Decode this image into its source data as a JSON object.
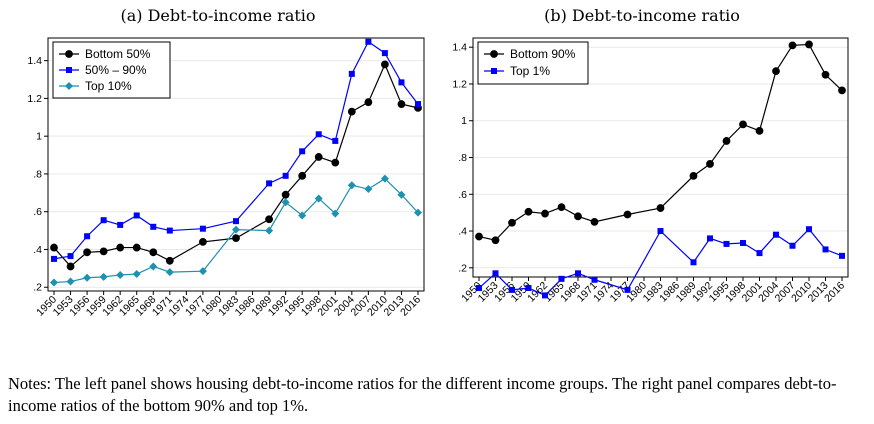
{
  "notes": "Notes: The left panel shows housing debt-to-income ratios for the different income groups. The right panel compares debt-to-income ratios of the bottom 90% and top 1%.",
  "chart_data": [
    {
      "type": "line",
      "title": "(a) Debt-to-income ratio",
      "xlabel": "",
      "ylabel": "",
      "x": [
        "1950",
        "1953",
        "1956",
        "1959",
        "1962",
        "1965",
        "1968",
        "1971",
        "1974",
        "1977",
        "1980",
        "1983",
        "1986",
        "1989",
        "1992",
        "1995",
        "1998",
        "2001",
        "2004",
        "2007",
        "2010",
        "2013",
        "2016"
      ],
      "ylim": [
        0.18,
        1.52
      ],
      "yticks": [
        0.2,
        0.4,
        0.6,
        0.8,
        1.0,
        1.2,
        1.4
      ],
      "ytick_labels": [
        ".2",
        ".4",
        ".6",
        ".8",
        "1",
        "1.2",
        "1.4"
      ],
      "grid": true,
      "legend_position": "top-left",
      "series": [
        {
          "name": "Bottom 50%",
          "color": "#000000",
          "marker": "circle",
          "points": [
            [
              "1950",
              0.41
            ],
            [
              "1953",
              0.31
            ],
            [
              "1956",
              0.385
            ],
            [
              "1959",
              0.39
            ],
            [
              "1962",
              0.41
            ],
            [
              "1965",
              0.41
            ],
            [
              "1968",
              0.385
            ],
            [
              "1971",
              0.34
            ],
            [
              "1977",
              0.44
            ],
            [
              "1983",
              0.46
            ],
            [
              "1989",
              0.56
            ],
            [
              "1992",
              0.69
            ],
            [
              "1995",
              0.79
            ],
            [
              "1998",
              0.89
            ],
            [
              "2001",
              0.86
            ],
            [
              "2004",
              1.13
            ],
            [
              "2007",
              1.18
            ],
            [
              "2010",
              1.38
            ],
            [
              "2013",
              1.17
            ],
            [
              "2016",
              1.15
            ]
          ]
        },
        {
          "name": "50% – 90%",
          "color": "#0000ff",
          "marker": "square",
          "points": [
            [
              "1950",
              0.35
            ],
            [
              "1953",
              0.365
            ],
            [
              "1956",
              0.47
            ],
            [
              "1959",
              0.555
            ],
            [
              "1962",
              0.53
            ],
            [
              "1965",
              0.58
            ],
            [
              "1968",
              0.52
            ],
            [
              "1971",
              0.5
            ],
            [
              "1977",
              0.51
            ],
            [
              "1983",
              0.55
            ],
            [
              "1989",
              0.75
            ],
            [
              "1992",
              0.79
            ],
            [
              "1995",
              0.92
            ],
            [
              "1998",
              1.01
            ],
            [
              "2001",
              0.975
            ],
            [
              "2004",
              1.33
            ],
            [
              "2007",
              1.5
            ],
            [
              "2010",
              1.44
            ],
            [
              "2013",
              1.285
            ],
            [
              "2016",
              1.17
            ]
          ]
        },
        {
          "name": "Top 10%",
          "color": "#1c91b0",
          "marker": "diamond",
          "points": [
            [
              "1950",
              0.225
            ],
            [
              "1953",
              0.23
            ],
            [
              "1956",
              0.25
            ],
            [
              "1959",
              0.255
            ],
            [
              "1962",
              0.265
            ],
            [
              "1965",
              0.27
            ],
            [
              "1968",
              0.31
            ],
            [
              "1971",
              0.28
            ],
            [
              "1977",
              0.285
            ],
            [
              "1983",
              0.505
            ],
            [
              "1989",
              0.5
            ],
            [
              "1992",
              0.65
            ],
            [
              "1995",
              0.58
            ],
            [
              "1998",
              0.67
            ],
            [
              "2001",
              0.59
            ],
            [
              "2004",
              0.74
            ],
            [
              "2007",
              0.72
            ],
            [
              "2010",
              0.775
            ],
            [
              "2013",
              0.69
            ],
            [
              "2016",
              0.595
            ]
          ]
        }
      ]
    },
    {
      "type": "line",
      "title": "(b) Debt-to-income ratio",
      "xlabel": "",
      "ylabel": "",
      "x": [
        "1950",
        "1953",
        "1956",
        "1959",
        "1962",
        "1965",
        "1968",
        "1971",
        "1974",
        "1977",
        "1980",
        "1983",
        "1986",
        "1989",
        "1992",
        "1995",
        "1998",
        "2001",
        "2004",
        "2007",
        "2010",
        "2013",
        "2016"
      ],
      "ylim": [
        0.15,
        1.45
      ],
      "yticks": [
        0.2,
        0.4,
        0.6,
        0.8,
        1.0,
        1.2,
        1.4
      ],
      "ytick_labels": [
        ".2",
        ".4",
        ".6",
        ".8",
        "1",
        "1.2",
        "1.4"
      ],
      "grid": true,
      "legend_position": "top-left",
      "series": [
        {
          "name": "Bottom 90%",
          "color": "#000000",
          "marker": "circle",
          "points": [
            [
              "1950",
              0.37
            ],
            [
              "1953",
              0.35
            ],
            [
              "1956",
              0.445
            ],
            [
              "1959",
              0.505
            ],
            [
              "1962",
              0.495
            ],
            [
              "1965",
              0.53
            ],
            [
              "1968",
              0.48
            ],
            [
              "1971",
              0.45
            ],
            [
              "1977",
              0.49
            ],
            [
              "1983",
              0.525
            ],
            [
              "1989",
              0.7
            ],
            [
              "1992",
              0.765
            ],
            [
              "1995",
              0.89
            ],
            [
              "1998",
              0.98
            ],
            [
              "2001",
              0.945
            ],
            [
              "2004",
              1.27
            ],
            [
              "2007",
              1.41
            ],
            [
              "2010",
              1.415
            ],
            [
              "2013",
              1.25
            ],
            [
              "2016",
              1.165
            ]
          ]
        },
        {
          "name": "Top 1%",
          "color": "#0000ff",
          "marker": "square",
          "points": [
            [
              "1950",
              0.09
            ],
            [
              "1953",
              0.17
            ],
            [
              "1956",
              0.08
            ],
            [
              "1959",
              0.09
            ],
            [
              "1962",
              0.05
            ],
            [
              "1965",
              0.14
            ],
            [
              "1968",
              0.17
            ],
            [
              "1971",
              0.135
            ],
            [
              "1977",
              0.08
            ],
            [
              "1983",
              0.4
            ],
            [
              "1989",
              0.23
            ],
            [
              "1992",
              0.36
            ],
            [
              "1995",
              0.33
            ],
            [
              "1998",
              0.335
            ],
            [
              "2001",
              0.28
            ],
            [
              "2004",
              0.38
            ],
            [
              "2007",
              0.32
            ],
            [
              "2010",
              0.41
            ],
            [
              "2013",
              0.3
            ],
            [
              "2016",
              0.265
            ]
          ]
        }
      ]
    }
  ]
}
